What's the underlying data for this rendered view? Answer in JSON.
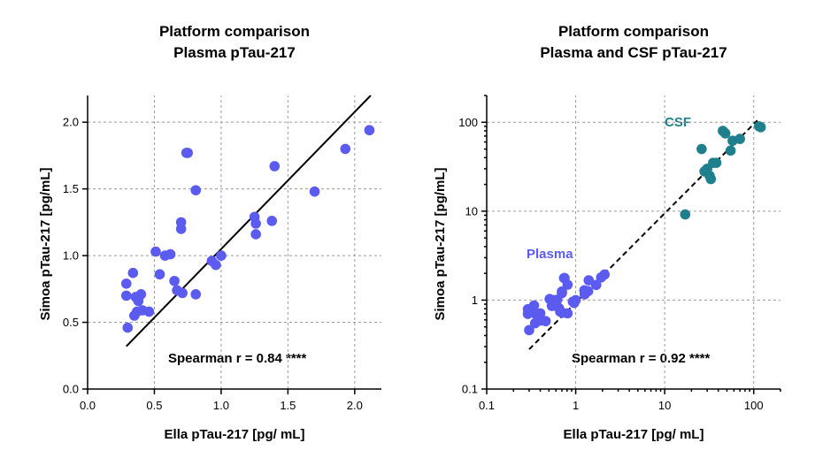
{
  "chart_data": [
    {
      "type": "scatter",
      "title": [
        "Platform comparison",
        "Plasma pTau-217"
      ],
      "xlabel": "Ella pTau-217 [pg/ mL]",
      "ylabel": "Simoa pTau-217 [pg/mL]",
      "xscale": "linear",
      "yscale": "linear",
      "xlim": [
        0.0,
        2.2
      ],
      "ylim": [
        0.0,
        2.2
      ],
      "xticks": [
        0.0,
        0.5,
        1.0,
        1.5,
        2.0
      ],
      "xtick_labels": [
        "0.0",
        "0.5",
        "1.0",
        "1.5",
        "2.0"
      ],
      "yticks": [
        0.0,
        0.5,
        1.0,
        1.5,
        2.0
      ],
      "ytick_labels": [
        "0.0",
        "0.5",
        "1.0",
        "1.5",
        "2.0"
      ],
      "grid": true,
      "annotation": "Spearman r = 0.84 ****",
      "fit_line": {
        "style": "solid",
        "x": [
          0.29,
          2.12
        ],
        "y": [
          0.32,
          2.2
        ]
      },
      "series": [
        {
          "name": "Plasma",
          "color": "#5b5bef",
          "points": [
            [
              0.29,
              0.79
            ],
            [
              0.29,
              0.7
            ],
            [
              0.3,
              0.46
            ],
            [
              0.34,
              0.87
            ],
            [
              0.35,
              0.55
            ],
            [
              0.36,
              0.69
            ],
            [
              0.37,
              0.58
            ],
            [
              0.38,
              0.66
            ],
            [
              0.4,
              0.71
            ],
            [
              0.41,
              0.59
            ],
            [
              0.46,
              0.58
            ],
            [
              0.51,
              1.03
            ],
            [
              0.54,
              0.86
            ],
            [
              0.58,
              1.0
            ],
            [
              0.62,
              1.01
            ],
            [
              0.65,
              0.81
            ],
            [
              0.67,
              0.74
            ],
            [
              0.7,
              1.25
            ],
            [
              0.7,
              1.2
            ],
            [
              0.71,
              0.72
            ],
            [
              0.74,
              1.77
            ],
            [
              0.75,
              1.77
            ],
            [
              0.81,
              1.49
            ],
            [
              0.81,
              0.71
            ],
            [
              0.93,
              0.96
            ],
            [
              0.96,
              0.93
            ],
            [
              1.0,
              1.0
            ],
            [
              1.25,
              1.29
            ],
            [
              1.26,
              1.24
            ],
            [
              1.26,
              1.16
            ],
            [
              1.38,
              1.26
            ],
            [
              1.4,
              1.67
            ],
            [
              1.7,
              1.48
            ],
            [
              1.93,
              1.8
            ],
            [
              2.11,
              1.94
            ]
          ]
        }
      ]
    },
    {
      "type": "scatter",
      "title": [
        "Platform comparison",
        "Plasma and CSF pTau-217"
      ],
      "xlabel": "Ella pTau-217 [pg/ mL]",
      "ylabel": "Simoa pTau-217 [pg/mL]",
      "xscale": "log",
      "yscale": "log",
      "xlim": [
        0.1,
        200
      ],
      "ylim": [
        0.1,
        200
      ],
      "xticks": [
        0.1,
        1,
        10,
        100
      ],
      "xtick_labels": [
        "0.1",
        "1",
        "10",
        "100"
      ],
      "yticks": [
        0.1,
        1,
        10,
        100
      ],
      "ytick_labels": [
        "0.1",
        "1",
        "10",
        "100"
      ],
      "grid": true,
      "annotation": "Spearman r = 0.92 ****",
      "fit_line": {
        "style": "dashed",
        "x": [
          0.3,
          110
        ],
        "y": [
          0.28,
          105
        ]
      },
      "series": [
        {
          "name": "Plasma",
          "color": "#5b5bef",
          "points": [
            [
              0.29,
              0.79
            ],
            [
              0.29,
              0.7
            ],
            [
              0.3,
              0.46
            ],
            [
              0.34,
              0.87
            ],
            [
              0.35,
              0.55
            ],
            [
              0.36,
              0.69
            ],
            [
              0.37,
              0.58
            ],
            [
              0.38,
              0.66
            ],
            [
              0.4,
              0.71
            ],
            [
              0.41,
              0.59
            ],
            [
              0.46,
              0.58
            ],
            [
              0.51,
              1.03
            ],
            [
              0.54,
              0.86
            ],
            [
              0.58,
              1.0
            ],
            [
              0.62,
              1.01
            ],
            [
              0.65,
              0.81
            ],
            [
              0.67,
              0.74
            ],
            [
              0.7,
              1.25
            ],
            [
              0.7,
              1.2
            ],
            [
              0.71,
              0.72
            ],
            [
              0.74,
              1.77
            ],
            [
              0.75,
              1.77
            ],
            [
              0.81,
              1.49
            ],
            [
              0.81,
              0.71
            ],
            [
              0.93,
              0.96
            ],
            [
              0.96,
              0.93
            ],
            [
              1.0,
              1.0
            ],
            [
              1.25,
              1.29
            ],
            [
              1.26,
              1.24
            ],
            [
              1.26,
              1.16
            ],
            [
              1.38,
              1.26
            ],
            [
              1.4,
              1.67
            ],
            [
              1.7,
              1.48
            ],
            [
              1.93,
              1.8
            ],
            [
              2.11,
              1.94
            ]
          ]
        },
        {
          "name": "CSF",
          "color": "#1f7f8c",
          "points": [
            [
              17,
              9.2
            ],
            [
              26,
              50
            ],
            [
              28,
              28
            ],
            [
              30,
              30
            ],
            [
              32,
              25
            ],
            [
              33,
              23
            ],
            [
              35,
              35
            ],
            [
              38,
              35
            ],
            [
              45,
              80
            ],
            [
              48,
              75
            ],
            [
              55,
              48
            ],
            [
              58,
              62
            ],
            [
              70,
              65
            ],
            [
              115,
              90
            ],
            [
              120,
              88
            ]
          ]
        }
      ]
    }
  ]
}
